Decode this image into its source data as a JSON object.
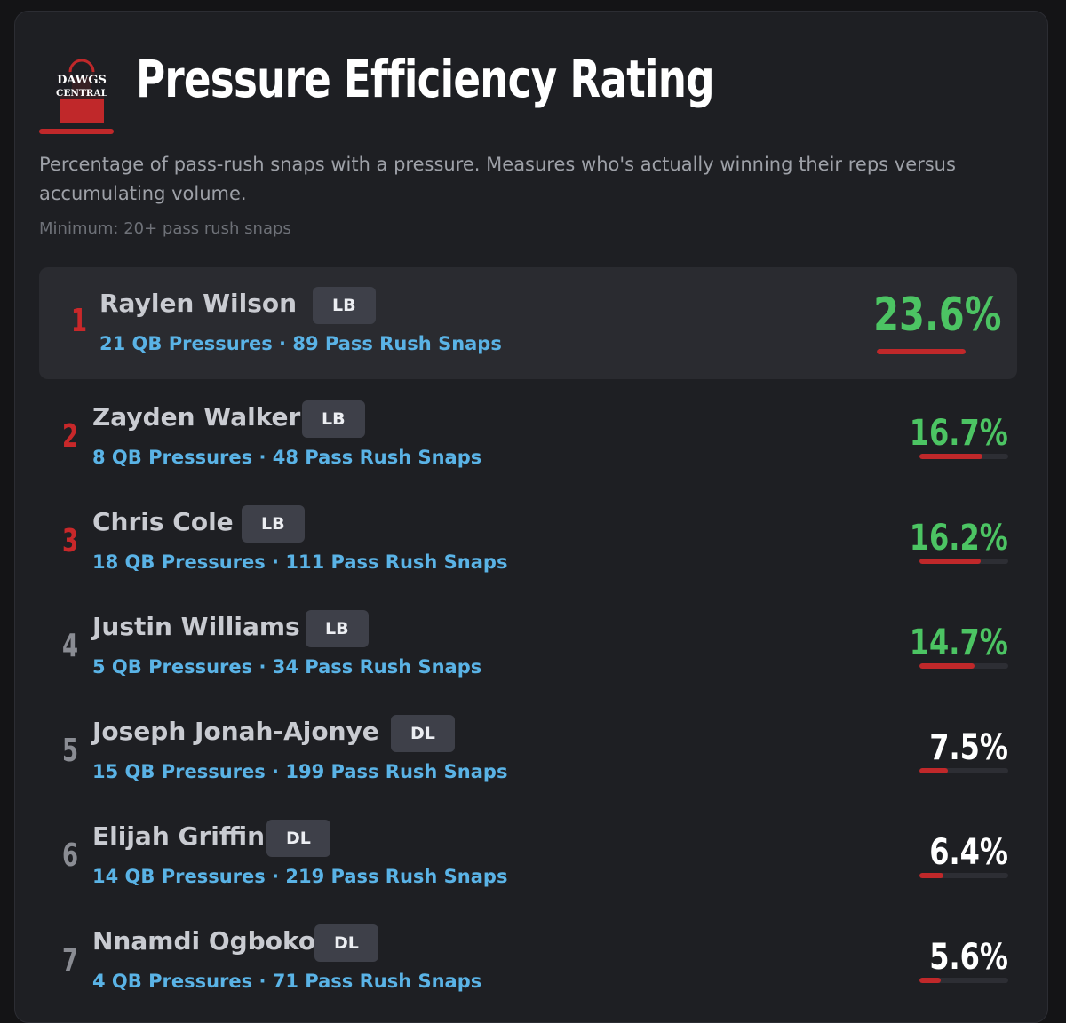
{
  "header": {
    "logo_text_1": "DAWGS",
    "logo_text_2": "CENTRAL",
    "title": "Pressure Efficiency Rating",
    "description": "Percentage of pass-rush snaps with a pressure. Measures who's actually winning their reps versus accumulating volume.",
    "minimum": "Minimum: 20+ pass rush snaps"
  },
  "colors": {
    "accent_red": "#c0282a",
    "green": "#4cc463",
    "stat_blue": "#5ab3e6"
  },
  "players": [
    {
      "rank": "1",
      "name": "Raylen Wilson",
      "position": "LB",
      "stats": "21 QB Pressures · 89 Pass Rush Snaps",
      "pct": "23.6%",
      "fill": 1.0
    },
    {
      "rank": "2",
      "name": "Zayden Walker",
      "position": "LB",
      "stats": "8 QB Pressures · 48 Pass Rush Snaps",
      "pct": "16.7%",
      "fill": 0.71
    },
    {
      "rank": "3",
      "name": "Chris Cole",
      "position": "LB",
      "stats": "18 QB Pressures · 111 Pass Rush Snaps",
      "pct": "16.2%",
      "fill": 0.69
    },
    {
      "rank": "4",
      "name": "Justin Williams",
      "position": "LB",
      "stats": "5 QB Pressures · 34 Pass Rush Snaps",
      "pct": "14.7%",
      "fill": 0.62
    },
    {
      "rank": "5",
      "name": "Joseph Jonah-Ajonye",
      "position": "DL",
      "stats": "15 QB Pressures · 199 Pass Rush Snaps",
      "pct": "7.5%",
      "fill": 0.32
    },
    {
      "rank": "6",
      "name": "Elijah Griffin",
      "position": "DL",
      "stats": "14 QB Pressures · 219 Pass Rush Snaps",
      "pct": "6.4%",
      "fill": 0.27
    },
    {
      "rank": "7",
      "name": "Nnamdi Ogboko",
      "position": "DL",
      "stats": "4 QB Pressures · 71 Pass Rush Snaps",
      "pct": "5.6%",
      "fill": 0.24
    }
  ]
}
